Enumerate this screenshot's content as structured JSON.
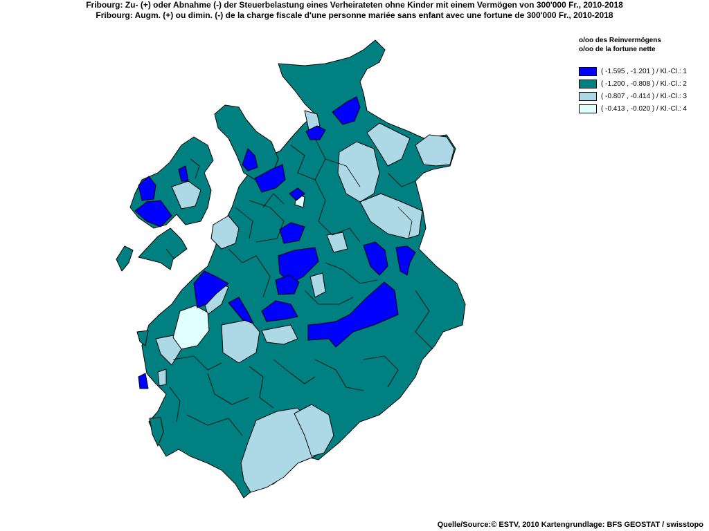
{
  "title": {
    "line1": "Fribourg: Zu- (+) oder Abnahme (-) der Steuerbelastung  eines Verheirateten ohne Kinder mit einem Vermögen von 300'000 Fr., 2010-2018",
    "line2": "Fribourg: Augm. (+) ou dimin. (-) de la charge fiscale d'une personne mariée sans enfant avec une fortune de 300'000 Fr., 2010-2018"
  },
  "legend": {
    "title_de": "o/oo des Reinvermögens",
    "title_fr": "o/oo de la fortune nette",
    "classes": [
      {
        "label": "( -1.595 , -1.201 ) / Kl.-Cl.: 1",
        "color": "#0000ff"
      },
      {
        "label": "( -1.200 , -0.808 ) / Kl.-Cl.: 2",
        "color": "#008080"
      },
      {
        "label": "( -0.807 , -0.414 ) / Kl.-Cl.: 3",
        "color": "#add8e6"
      },
      {
        "label": "( -0.413 , -0.020 ) / Kl.-Cl.: 4",
        "color": "#e0ffff"
      }
    ]
  },
  "source": "Quelle/Source:© ESTV, 2010 Kartengrundlage: BFS GEOSTAT / swisstopo",
  "map": {
    "region": "Fribourg",
    "border_color": "#000000",
    "background_color": "#ffffff"
  }
}
